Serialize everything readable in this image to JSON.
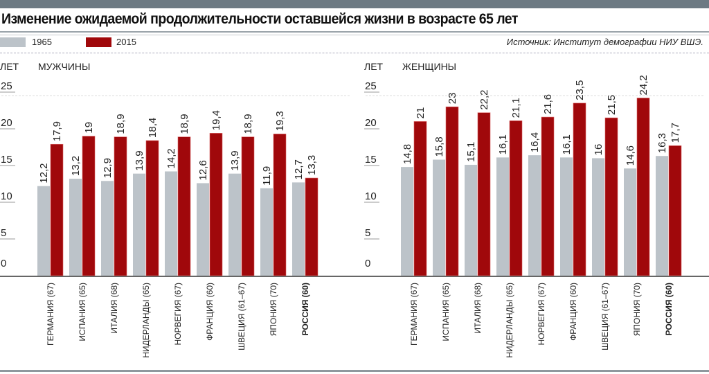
{
  "title": "Изменение ожидаемой продолжительности оставшейся жизни  в возрасте 65 лет",
  "source": "Источник: Институт демографии НИУ ВШЭ.",
  "legend": [
    {
      "label": "1965",
      "color": "#bcc3c9"
    },
    {
      "label": "2015",
      "color": "#a0080b"
    }
  ],
  "chart_data": [
    {
      "type": "bar",
      "title": "МУЖЧИНЫ",
      "ylabel": "ЛЕТ",
      "ylim": [
        0,
        25
      ],
      "yticks": [
        "0",
        "5",
        "10",
        "15",
        "20",
        "25"
      ],
      "categories": [
        "ГЕРМАНИЯ (67)",
        "ИСПАНИЯ (65)",
        "ИТАЛИЯ (68)",
        "НИДЕРЛАНДЫ (65)",
        "НОРВЕГИЯ (67)",
        "ФРАНЦИЯ (60)",
        "ШВЕЦИЯ (61–67)",
        "ЯПОНИЯ (70)",
        "РОССИЯ (60)"
      ],
      "series": [
        {
          "name": "1965",
          "values": [
            12.2,
            13.2,
            12.9,
            13.9,
            14.2,
            12.6,
            13.9,
            11.9,
            12.7
          ],
          "labels": [
            "12,2",
            "13,2",
            "12,9",
            "13,9",
            "14,2",
            "12,6",
            "13,9",
            "11,9",
            "12,7"
          ]
        },
        {
          "name": "2015",
          "values": [
            17.9,
            19,
            18.9,
            18.4,
            18.9,
            19.4,
            18.9,
            19.3,
            13.3
          ],
          "labels": [
            "17,9",
            "19",
            "18,9",
            "18,4",
            "18,9",
            "19,4",
            "18,9",
            "19,3",
            "13,3"
          ]
        }
      ]
    },
    {
      "type": "bar",
      "title": "ЖЕНЩИНЫ",
      "ylabel": "ЛЕТ",
      "ylim": [
        0,
        25
      ],
      "yticks": [
        "0",
        "5",
        "10",
        "15",
        "20",
        "25"
      ],
      "categories": [
        "ГЕРМАНИЯ (67)",
        "ИСПАНИЯ (65)",
        "ИТАЛИЯ (68)",
        "НИДЕРЛАНДЫ (65)",
        "НОРВЕГИЯ (67)",
        "ФРАНЦИЯ (60)",
        "ШВЕЦИЯ (61–67)",
        "ЯПОНИЯ (70)",
        "РОССИЯ (60)"
      ],
      "series": [
        {
          "name": "1965",
          "values": [
            14.8,
            15.8,
            15.1,
            16.1,
            16.4,
            16.1,
            16,
            14.6,
            16.3
          ],
          "labels": [
            "14,8",
            "15,8",
            "15,1",
            "16,1",
            "16,4",
            "16,1",
            "16",
            "14,6",
            "16,3"
          ]
        },
        {
          "name": "2015",
          "values": [
            21,
            23,
            22.2,
            21.1,
            21.6,
            23.5,
            21.5,
            24.2,
            17.7
          ],
          "labels": [
            "21",
            "23",
            "22,2",
            "21,1",
            "21,6",
            "23,5",
            "21,5",
            "24,2",
            "17,7"
          ]
        }
      ]
    }
  ]
}
